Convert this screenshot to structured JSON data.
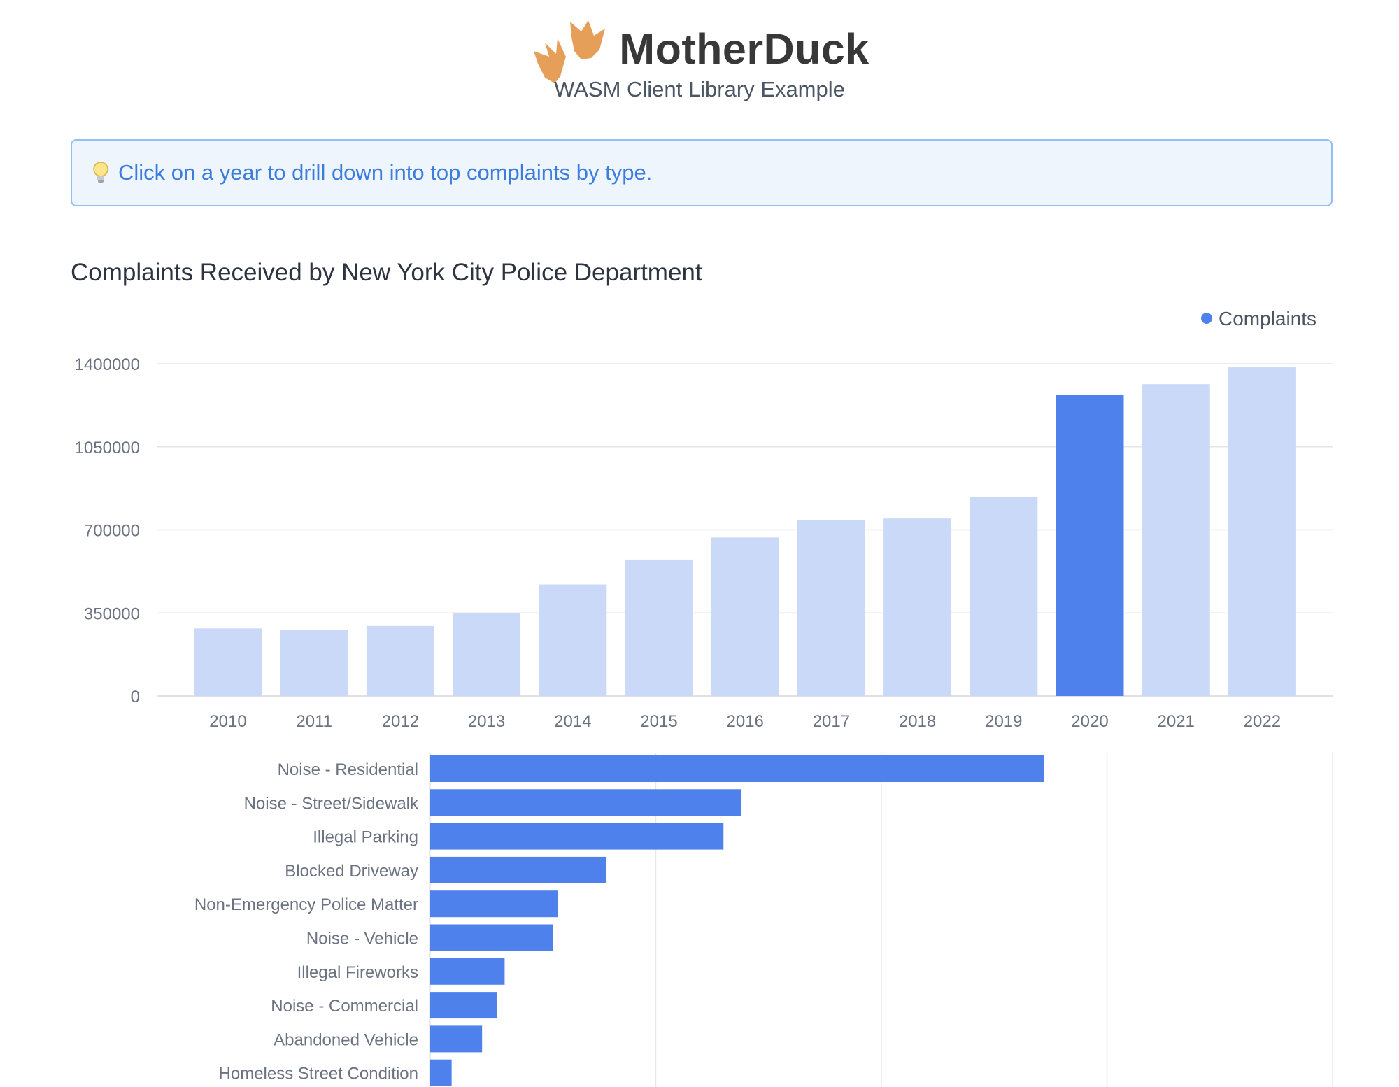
{
  "header": {
    "brand": "MotherDuck",
    "subtitle": "WASM Client Library Example"
  },
  "hint": {
    "icon": "lightbulb-icon",
    "text": "Click on a year to drill down into top complaints by type."
  },
  "colors": {
    "selected_bar": "#4f81ec",
    "bar": "#c9d9f7",
    "hint_text": "#3b7ddd",
    "hint_bg": "#eef5fd",
    "logo": "#e59f58"
  },
  "chart_data": [
    {
      "type": "bar",
      "title": "Complaints Received by New York City Police Department",
      "legend": {
        "entries": [
          "Complaints"
        ],
        "placement": "top-right"
      },
      "categories": [
        "2010",
        "2011",
        "2012",
        "2013",
        "2014",
        "2015",
        "2016",
        "2017",
        "2018",
        "2019",
        "2020",
        "2021",
        "2022"
      ],
      "series": [
        {
          "name": "Complaints",
          "values": [
            285000,
            280000,
            295000,
            350000,
            470000,
            575000,
            668000,
            742000,
            748000,
            840000,
            1270000,
            1314000,
            1385000
          ]
        }
      ],
      "selected_category": "2020",
      "yticks": [
        0,
        350000,
        700000,
        1050000,
        1400000
      ],
      "ylim": [
        0,
        1400000
      ],
      "grid": true
    },
    {
      "type": "bar",
      "orientation": "horizontal",
      "categories": [
        "Noise - Residential",
        "Noise - Street/Sidewalk",
        "Illegal Parking",
        "Blocked Driveway",
        "Non-Emergency Police Matter",
        "Noise - Vehicle",
        "Illegal Fireworks",
        "Noise - Commercial",
        "Abandoned Vehicle",
        "Homeless Street Condition"
      ],
      "values": [
        272000,
        138000,
        130000,
        78000,
        56500,
        54500,
        33000,
        29500,
        23000,
        9500
      ],
      "xlim": [
        0,
        400000
      ],
      "grid": true
    }
  ]
}
